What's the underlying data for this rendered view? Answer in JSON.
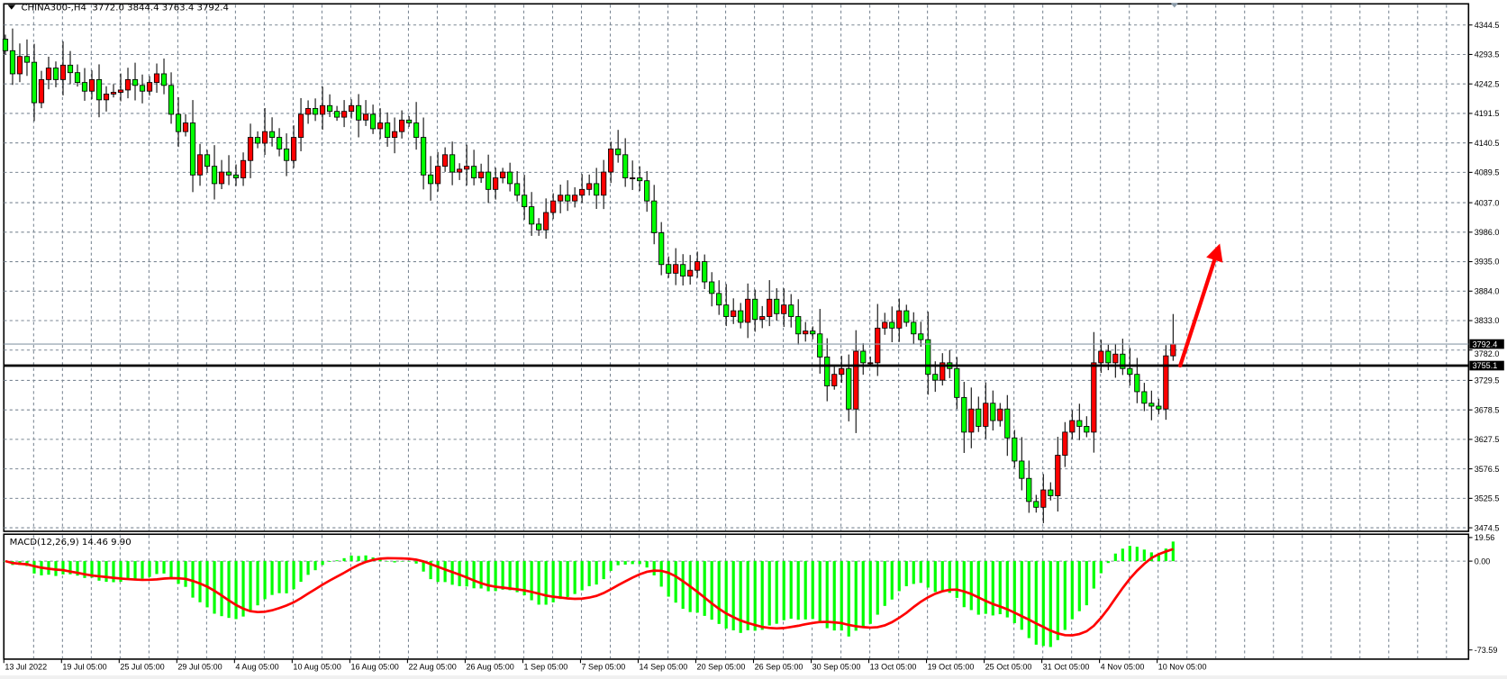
{
  "header": {
    "symbol_timeframe": "CHINA300-,H4",
    "ohlc_text": "3772.0 3844.4 3763.4 3792.4"
  },
  "indicator": {
    "label": "MACD(12,26,9)",
    "values_text": "14.46 9.90",
    "histogram_color": "#00ff00",
    "signal_color": "#ff0000"
  },
  "colors": {
    "bull_body": "#ff0000",
    "bear_body": "#00ff00",
    "grid": "#7b8794",
    "arrow": "#ff0000",
    "level_line": "#000000",
    "bid_line": "#8a9aa8"
  },
  "chart_data": {
    "type": "candlestick",
    "timeframe": "H4",
    "close": [
      4300,
      4260,
      4290,
      4280,
      4210,
      4250,
      4270,
      4250,
      4275,
      4262,
      4245,
      4230,
      4250,
      4215,
      4225,
      4228,
      4232,
      4250,
      4240,
      4230,
      4245,
      4260,
      4240,
      4190,
      4160,
      4175,
      4085,
      4120,
      4100,
      4070,
      4090,
      4085,
      4080,
      4110,
      4150,
      4140,
      4160,
      4150,
      4130,
      4110,
      4150,
      4190,
      4200,
      4190,
      4205,
      4195,
      4185,
      4195,
      4205,
      4180,
      4190,
      4165,
      4175,
      4150,
      4160,
      4180,
      4175,
      4150,
      4085,
      4070,
      4100,
      4120,
      4090,
      4095,
      4100,
      4080,
      4090,
      4060,
      4080,
      4090,
      4070,
      4050,
      4030,
      4000,
      3990,
      4020,
      4040,
      4050,
      4040,
      4050,
      4060,
      4070,
      4050,
      4090,
      4130,
      4120,
      4080,
      4080,
      4075,
      4040,
      3985,
      3930,
      3915,
      3930,
      3910,
      3920,
      3935,
      3900,
      3880,
      3860,
      3840,
      3850,
      3830,
      3870,
      3835,
      3840,
      3870,
      3845,
      3860,
      3840,
      3810,
      3815,
      3810,
      3770,
      3720,
      3740,
      3750,
      3680,
      3780,
      3760,
      3760,
      3820,
      3830,
      3820,
      3850,
      3830,
      3810,
      3800,
      3740,
      3730,
      3760,
      3750,
      3700,
      3640,
      3680,
      3650,
      3690,
      3660,
      3680,
      3630,
      3590,
      3560,
      3520,
      3510,
      3540,
      3530,
      3600,
      3640,
      3660,
      3650,
      3640,
      3760,
      3780,
      3760,
      3775,
      3750,
      3740,
      3710,
      3690,
      3685,
      3680,
      3772.0,
      3792.4
    ],
    "first_open": 4320,
    "last_candle": {
      "open": 3772.0,
      "high": 3844.4,
      "low": 3763.4,
      "close": 3792.4
    },
    "price_axis": {
      "range": [
        3474.5,
        4344.5
      ],
      "ticks": [
        "4344.5",
        "4293.5",
        "4242.5",
        "4191.5",
        "4140.5",
        "4089.5",
        "4037.0",
        "3986.0",
        "3935.0",
        "3884.0",
        "3833.0",
        "3782.0",
        "3729.5",
        "3678.5",
        "3627.5",
        "3576.5",
        "3525.5",
        "3474.5"
      ]
    },
    "time_axis": {
      "ticks": [
        "13 Jul 2022",
        "19 Jul 05:00",
        "25 Jul 05:00",
        "29 Jul 05:00",
        "4 Aug 05:00",
        "10 Aug 05:00",
        "16 Aug 05:00",
        "22 Aug 05:00",
        "26 Aug 05:00",
        "1 Sep 05:00",
        "7 Sep 05:00",
        "14 Sep 05:00",
        "20 Sep 05:00",
        "26 Sep 05:00",
        "30 Sep 05:00",
        "13 Oct 05:00",
        "19 Oct 05:00",
        "25 Oct 05:00",
        "31 Oct 05:00",
        "4 Nov 05:00",
        "10 Nov 05:00"
      ]
    },
    "current_price_label": "3792.4",
    "horizontal_level": {
      "value": 3755.1,
      "label": "3755.1"
    },
    "arrow_annotation": {
      "from_price": 3755.1,
      "to_price": 3960,
      "direction": "up"
    },
    "macd": {
      "fast": 12,
      "slow": 26,
      "signal": 9,
      "axis_ticks": [
        "19.56",
        "0.00",
        "-73.59"
      ],
      "range": [
        -73.59,
        19.56
      ]
    },
    "grid": true
  }
}
